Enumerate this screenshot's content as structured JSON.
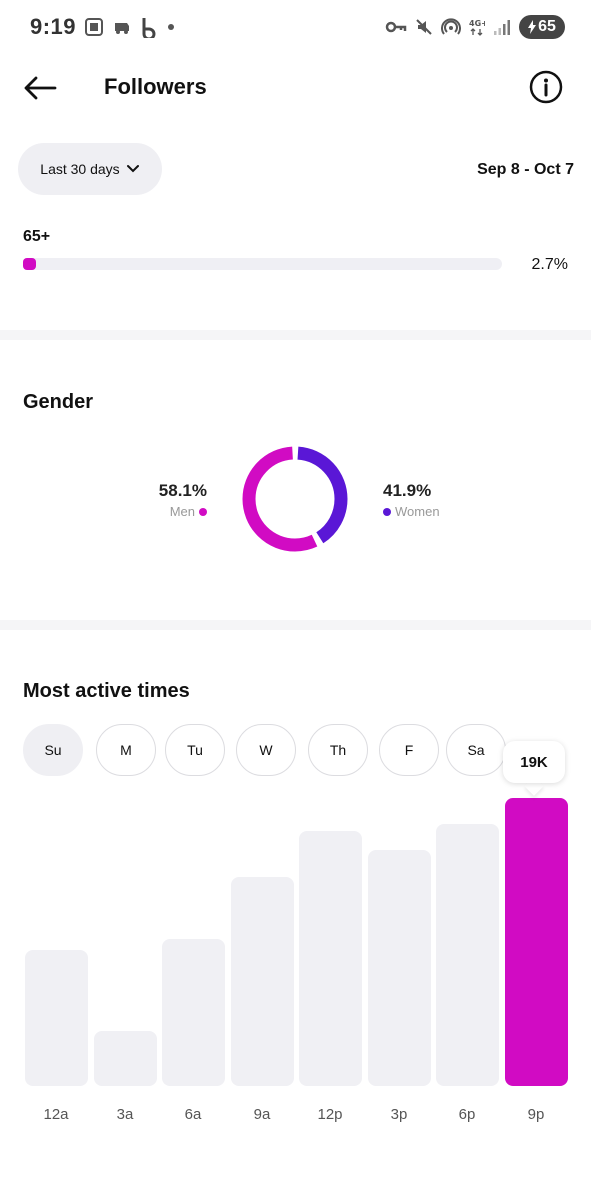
{
  "status_bar": {
    "time": "9:19",
    "battery": "65",
    "icons": [
      "screenshot-icon",
      "cast-icon",
      "b-app-icon",
      "dot-icon",
      "key-icon",
      "mute-icon",
      "hotspot-icon",
      "4g-icon",
      "signal-icon",
      "battery-icon"
    ]
  },
  "header": {
    "title": "Followers",
    "back_icon": "arrow-left-icon",
    "info_icon": "info-icon"
  },
  "filter": {
    "range_label": "Last 30 days",
    "date_range": "Sep 8 - Oct 7"
  },
  "age": {
    "label": "65+",
    "value_text": "2.7%",
    "percent": 2.7
  },
  "gender": {
    "title": "Gender",
    "men": {
      "pct": "58.1%",
      "label": "Men",
      "value": 58.1,
      "color": "#d10bc3"
    },
    "women": {
      "pct": "41.9%",
      "label": "Women",
      "value": 41.9,
      "color": "#5a17d6"
    }
  },
  "active_times": {
    "title": "Most active times",
    "days": [
      "Su",
      "M",
      "Tu",
      "W",
      "Th",
      "F",
      "Sa"
    ],
    "selected_day": "Su",
    "tooltip": "19K"
  },
  "chart_data": {
    "type": "bar",
    "categories": [
      "12a",
      "3a",
      "6a",
      "9a",
      "12p",
      "3p",
      "6p",
      "9p"
    ],
    "values": [
      9000,
      3600,
      9700,
      13800,
      16800,
      15600,
      17300,
      19000
    ],
    "highlight_index": 7,
    "colors": {
      "bar": "#f0f0f4",
      "highlight": "#d10bc3"
    }
  }
}
